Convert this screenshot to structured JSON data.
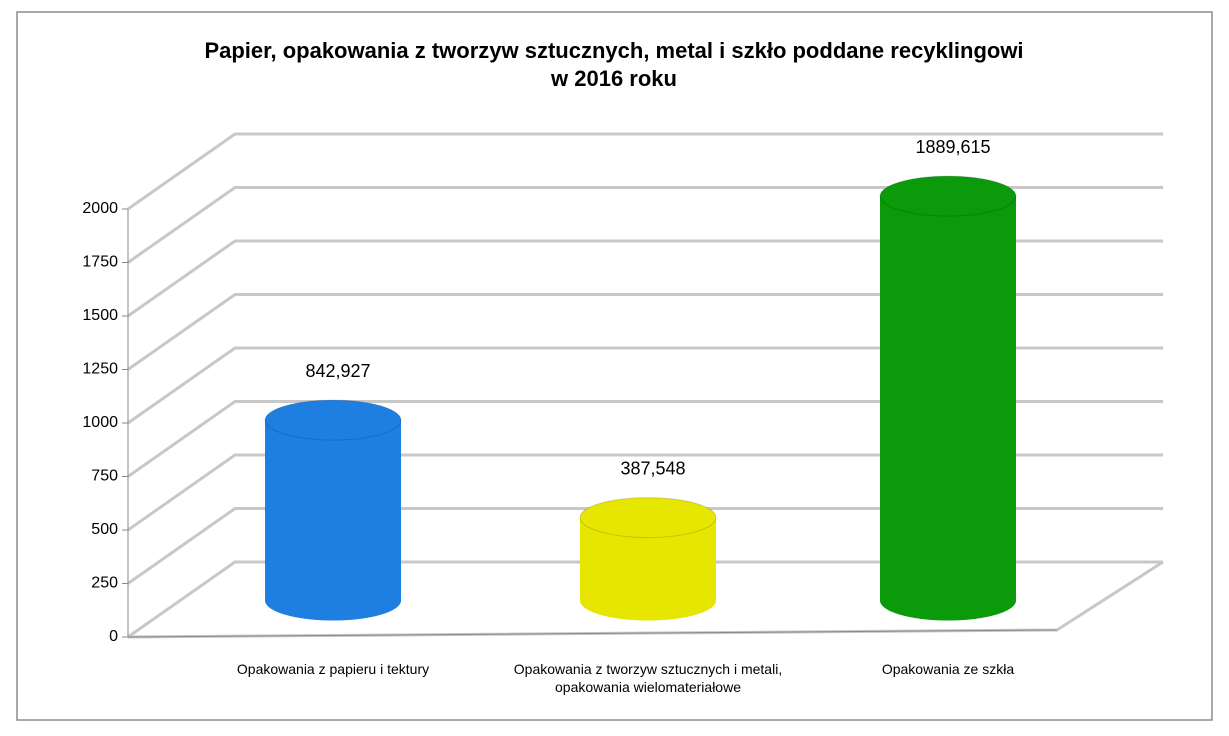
{
  "chart_data": {
    "type": "cylinder",
    "title": [
      "Papier, opakowania z tworzyw sztucznych, metal i szkło poddane recyklingowi",
      "w 2016 roku"
    ],
    "categories": [
      "Opakowania z papieru i tektury",
      "Opakowania z tworzyw sztucznych i metali, opakowania wielomateriałowe",
      "Opakowania ze szkła"
    ],
    "values": [
      842.927,
      387.548,
      1889.615
    ],
    "value_labels": [
      "842,927",
      "387,548",
      "1889,615"
    ],
    "colors": [
      "#1f7fe0",
      "#e6e600",
      "#0a9a0a"
    ],
    "ylim": [
      0,
      2000
    ],
    "yticks": [
      0,
      250,
      500,
      750,
      1000,
      1250,
      1500,
      1750,
      2000
    ],
    "grid": true
  }
}
